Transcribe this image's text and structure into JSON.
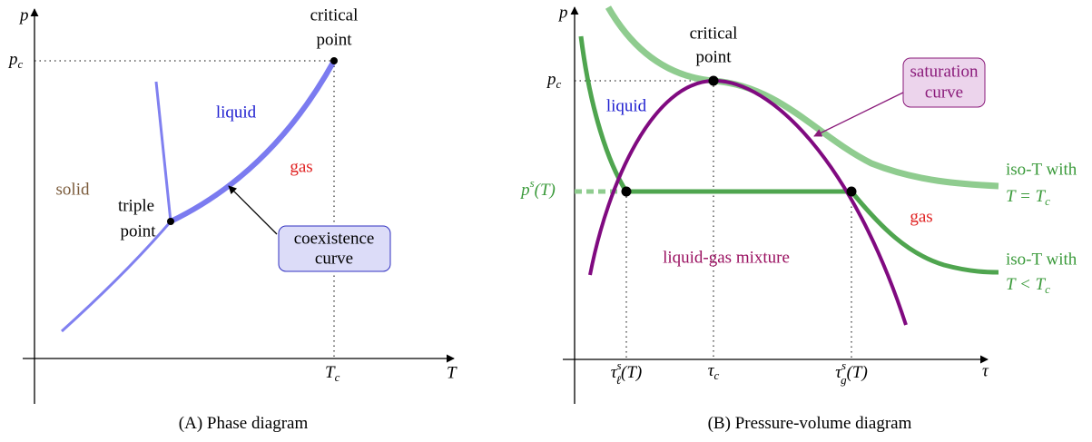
{
  "panel_a": {
    "axis_y": "p",
    "axis_x": "T",
    "p_c": {
      "base": "p",
      "sub": "c"
    },
    "T_c": {
      "base": "T",
      "sub": "c"
    },
    "critical_point": [
      "critical",
      "point"
    ],
    "triple_point": [
      "triple",
      "point"
    ],
    "liquid": "liquid",
    "gas": "gas",
    "solid": "solid",
    "coexistence_curve": [
      "coexistence",
      "curve"
    ],
    "caption": {
      "tag": "(A)",
      "text": "Phase diagram"
    }
  },
  "panel_b": {
    "axis_y": "p",
    "axis_x": "τ",
    "p_c": {
      "base": "p",
      "sub": "c"
    },
    "p_s": {
      "base": "p",
      "sup": "s",
      "rest": "(T)"
    },
    "critical_point": [
      "critical",
      "point"
    ],
    "saturation_curve": [
      "saturation",
      "curve"
    ],
    "liquid": "liquid",
    "gas": "gas",
    "mixture": "liquid-gas mixture",
    "iso_tc": {
      "line1": "iso-T with",
      "base": "T = T",
      "sub": "c"
    },
    "iso_lt": {
      "line1": "iso-T with",
      "base": "T < T",
      "sub": "c"
    },
    "tau_l": {
      "base": "τ",
      "sup": "s",
      "sub": "ℓ",
      "rest": "(T)"
    },
    "tau_c": {
      "base": "τ",
      "sub": "c"
    },
    "tau_g": {
      "base": "τ",
      "sup": "s",
      "sub": "g",
      "rest": "(T)"
    },
    "caption": {
      "tag": "(B)",
      "text": "Pressure-volume diagram"
    }
  }
}
